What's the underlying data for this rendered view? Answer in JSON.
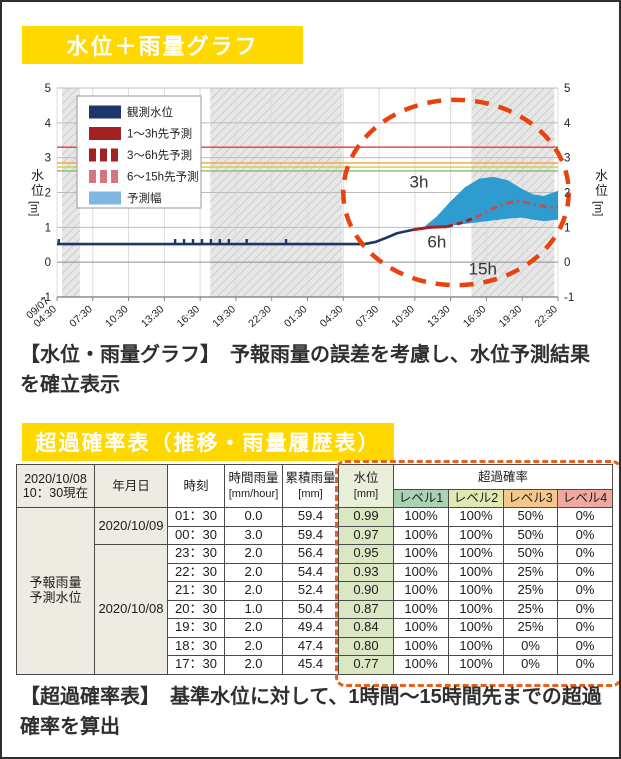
{
  "banners": {
    "chart": {
      "label": "水位＋雨量グラフ",
      "bg": "#ffd800",
      "fg": "#ffffff"
    },
    "table": {
      "label": "超過確率表（推移・雨量履歴表）",
      "bg": "#ffd800",
      "fg": "#ffffff"
    }
  },
  "captions": {
    "chart": "【水位・雨量グラフ】　予報雨量の誤差を考慮し、水位予測結果を確立表示",
    "table": "【超過確率表】　基準水位に対して、1時間～15時間先までの超過確率を算出"
  },
  "chart_data": {
    "type": "line",
    "ylabel_left": "水位",
    "ylabel_right": "水位",
    "y_unit": "[m]",
    "ylim": [
      -1,
      5
    ],
    "yticks": [
      5,
      4,
      3,
      2,
      1,
      0,
      -1
    ],
    "xticklabels": [
      "09/07\n04:30",
      "07:30",
      "10:30",
      "13:30",
      "16:30",
      "19:30",
      "22:30",
      "01:30",
      "04:30",
      "07:30",
      "10:30",
      "13:30",
      "16:30",
      "19:30",
      "22:30"
    ],
    "grid": true,
    "shaded_bands": [
      [
        0.14,
        0.64
      ],
      [
        4.28,
        7.97
      ],
      [
        11.58,
        13.9
      ]
    ],
    "reference_lines": [
      {
        "value": 3.3,
        "color": "#e83840"
      },
      {
        "value": 2.85,
        "color": "#f0a43c"
      },
      {
        "value": 2.73,
        "color": "#d8c84c"
      },
      {
        "value": 2.62,
        "color": "#84c064"
      }
    ],
    "legend": {
      "position": "upper-left",
      "items": [
        {
          "label": "観測水位",
          "color": "#1b3668",
          "dashed": false
        },
        {
          "label": "1～3h先予測",
          "color": "#a32025",
          "dashed": false
        },
        {
          "label": "3～6h先予測",
          "color": "#a32025",
          "dashed": true
        },
        {
          "label": "6～15h先予測",
          "color": "#d4767c",
          "dashed": true
        },
        {
          "label": "予測幅",
          "color": "#7db8e2",
          "dashed": false
        }
      ]
    },
    "series": [
      {
        "name": "予測幅",
        "type": "band",
        "color": "#2f9cd0",
        "points_lower": [
          [
            10.3,
            1.0
          ],
          [
            10.6,
            1.0
          ],
          [
            11.0,
            1.05
          ],
          [
            11.4,
            1.1
          ],
          [
            11.8,
            1.15
          ],
          [
            12.2,
            1.2
          ],
          [
            12.6,
            1.25
          ],
          [
            13.0,
            1.28
          ],
          [
            13.3,
            1.22
          ],
          [
            13.6,
            1.18
          ],
          [
            14.0,
            1.22
          ]
        ],
        "points_upper": [
          [
            10.3,
            1.05
          ],
          [
            10.6,
            1.3
          ],
          [
            11.0,
            1.75
          ],
          [
            11.4,
            2.15
          ],
          [
            11.8,
            2.4
          ],
          [
            12.2,
            2.45
          ],
          [
            12.6,
            2.35
          ],
          [
            13.0,
            2.1
          ],
          [
            13.3,
            1.95
          ],
          [
            13.6,
            1.9
          ],
          [
            14.0,
            2.05
          ]
        ]
      },
      {
        "name": "観測水位",
        "type": "line",
        "color": "#1b3668",
        "width": 2.6,
        "points": [
          [
            0,
            0.52
          ],
          [
            8.6,
            0.52
          ],
          [
            8.9,
            0.58
          ],
          [
            9.2,
            0.7
          ],
          [
            9.5,
            0.83
          ],
          [
            9.95,
            0.93
          ]
        ],
        "marker_x": [
          0.05,
          3.3,
          3.55,
          3.8,
          4.05,
          4.3,
          4.55,
          4.8,
          5.3,
          6.4
        ]
      },
      {
        "name": "1～3h先予測",
        "type": "line",
        "color": "#a32025",
        "width": 3,
        "points": [
          [
            9.95,
            0.93
          ],
          [
            10.4,
            1.0
          ],
          [
            10.9,
            1.02
          ]
        ]
      },
      {
        "name": "3～6h先予測",
        "type": "line",
        "color": "#a32025",
        "width": 3,
        "dash": "6 4",
        "points": [
          [
            10.9,
            1.02
          ],
          [
            11.3,
            1.13
          ],
          [
            11.7,
            1.28
          ]
        ]
      },
      {
        "name": "6～15h先予測",
        "type": "line",
        "color": "#cc4a50",
        "width": 3,
        "dash": "7 4 2 4",
        "points": [
          [
            11.7,
            1.28
          ],
          [
            12.0,
            1.45
          ],
          [
            12.3,
            1.6
          ],
          [
            12.6,
            1.7
          ],
          [
            12.9,
            1.75
          ],
          [
            13.2,
            1.7
          ],
          [
            13.5,
            1.62
          ],
          [
            13.8,
            1.57
          ],
          [
            14.0,
            1.6
          ]
        ]
      }
    ],
    "annotations": [
      {
        "text": "3h",
        "x": 9.85,
        "y": 2.15
      },
      {
        "text": "6h",
        "x": 10.35,
        "y": 0.42
      },
      {
        "text": "15h",
        "x": 11.5,
        "y": -0.35
      }
    ],
    "highlight_ellipse": {
      "cx": 11.15,
      "cy": 2.0,
      "rx": 3.15,
      "ry": 2.66,
      "color": "#e8420e"
    }
  },
  "table": {
    "current_date": "2020/10/08",
    "current_suffix": "10：30現在",
    "columns": {
      "date": "年月日",
      "time": "時刻",
      "hourly_rain": "時間雨量",
      "hourly_rain_unit": "[mm/hour]",
      "cum_rain": "累積雨量",
      "cum_rain_unit": "[mm]",
      "level": "水位",
      "level_unit": "[mm]",
      "exceed": "超過確率",
      "l1": "レベル1",
      "l2": "レベル2",
      "l3": "レベル3",
      "l4": "レベル4"
    },
    "row_group_label": "予報雨量\n予測水位",
    "date_groups": [
      {
        "label": "2020/10/09",
        "span": 2
      },
      {
        "label": "2020/10/08",
        "span": 7
      }
    ],
    "rows": [
      {
        "time": "01：30",
        "hourly": "0.0",
        "cum": "59.4",
        "level": "0.99",
        "p": [
          "100%",
          "100%",
          "50%",
          "0%"
        ]
      },
      {
        "time": "00：30",
        "hourly": "3.0",
        "cum": "59.4",
        "level": "0.97",
        "p": [
          "100%",
          "100%",
          "50%",
          "0%"
        ]
      },
      {
        "time": "23：30",
        "hourly": "2.0",
        "cum": "56.4",
        "level": "0.95",
        "p": [
          "100%",
          "100%",
          "50%",
          "0%"
        ]
      },
      {
        "time": "22：30",
        "hourly": "2.0",
        "cum": "54.4",
        "level": "0.93",
        "p": [
          "100%",
          "100%",
          "25%",
          "0%"
        ]
      },
      {
        "time": "21：30",
        "hourly": "2.0",
        "cum": "52.4",
        "level": "0.90",
        "p": [
          "100%",
          "100%",
          "25%",
          "0%"
        ]
      },
      {
        "time": "20：30",
        "hourly": "1.0",
        "cum": "50.4",
        "level": "0.87",
        "p": [
          "100%",
          "100%",
          "25%",
          "0%"
        ]
      },
      {
        "time": "19：30",
        "hourly": "2.0",
        "cum": "49.4",
        "level": "0.84",
        "p": [
          "100%",
          "100%",
          "25%",
          "0%"
        ]
      },
      {
        "time": "18：30",
        "hourly": "2.0",
        "cum": "47.4",
        "level": "0.80",
        "p": [
          "100%",
          "100%",
          "0%",
          "0%"
        ]
      },
      {
        "time": "17：30",
        "hourly": "2.0",
        "cum": "45.4",
        "level": "0.77",
        "p": [
          "100%",
          "100%",
          "0%",
          "0%"
        ]
      }
    ],
    "colors": {
      "header_beige": "#edebe2",
      "level_header": "#e9efd8",
      "level_cell": "#dbe7c2",
      "l1": "#a9d3b4",
      "l2": "#dfeab3",
      "l3": "#f4c88c",
      "l4": "#f1a8a0",
      "highlight_border": "#e8611c"
    }
  }
}
